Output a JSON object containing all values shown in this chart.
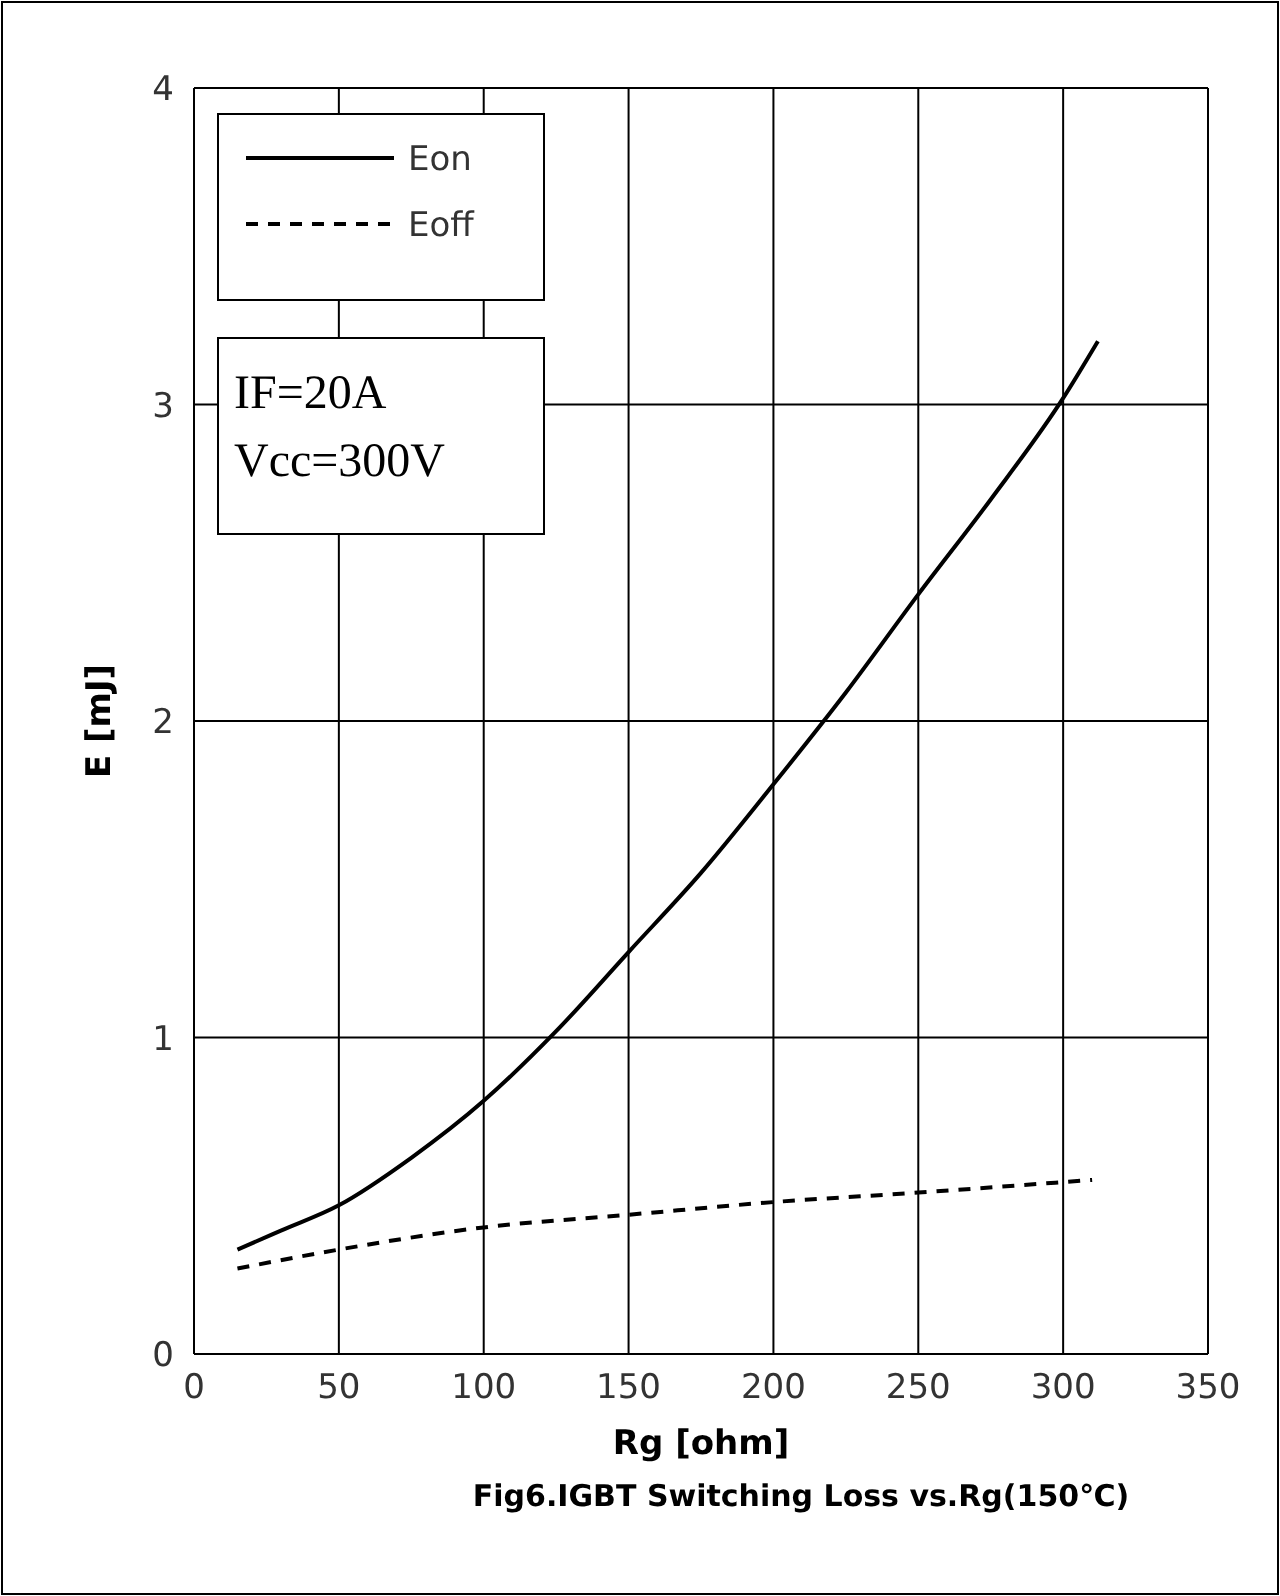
{
  "chart_data": {
    "type": "line",
    "title": "Fig6.IGBT Switching Loss vs.Rg(150℃)",
    "xlabel": "Rg  [ohm]",
    "ylabel": "E  [mJ]",
    "xlim": [
      0,
      350
    ],
    "xticks": [
      0,
      50,
      100,
      150,
      200,
      250,
      300,
      350
    ],
    "ylim": [
      0,
      4
    ],
    "yticks": [
      0,
      1,
      2,
      3,
      4
    ],
    "grid": true,
    "legend": "top left",
    "annotations": [
      "IF=20A",
      "Vcc=300V"
    ],
    "series": [
      {
        "name": "Eon",
        "color": "#000000",
        "line_style": "solid",
        "x": [
          15,
          30,
          50,
          75,
          100,
          125,
          150,
          175,
          200,
          225,
          250,
          275,
          300,
          312
        ],
        "values": [
          0.33,
          0.39,
          0.47,
          0.62,
          0.8,
          1.02,
          1.27,
          1.52,
          1.8,
          2.09,
          2.4,
          2.7,
          3.02,
          3.2
        ]
      },
      {
        "name": "Eoff",
        "color": "#000000",
        "line_style": "dashed",
        "x": [
          15,
          50,
          100,
          150,
          200,
          250,
          310
        ],
        "values": [
          0.27,
          0.33,
          0.4,
          0.44,
          0.48,
          0.51,
          0.55
        ]
      }
    ]
  }
}
